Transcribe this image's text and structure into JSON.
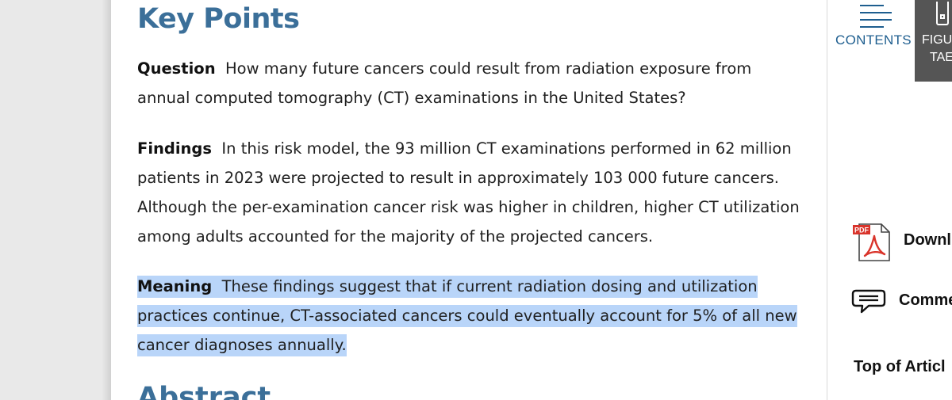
{
  "key_points": {
    "title": "Key Points",
    "question": {
      "label": "Question",
      "text": "How many future cancers could result from radiation exposure from annual computed tomography (CT) examinations in the United States?"
    },
    "findings": {
      "label": "Findings",
      "text": "In this risk model, the 93 million CT examinations performed in 62 million patients in 2023 were projected to result in approximately 103 000 future cancers. Although the per-examination cancer risk was higher in children, higher CT utilization among adults accounted for the majority of the projected cancers."
    },
    "meaning": {
      "label": "Meaning",
      "text": "These findings suggest that if current radiation dosing and utilization practices continue, CT-associated cancers could eventually account for 5% of all new cancer diagnoses annually."
    }
  },
  "next_section_title": "Abstract",
  "sidebar": {
    "contents_label": "CONTENTS",
    "figures_label_line1": "FIGU",
    "figures_label_line2": "TAE",
    "pdf_badge": "PDF",
    "download_label": "Downl",
    "comments_label": "Comme",
    "top_label": "Top of Articl"
  },
  "colors": {
    "heading": "#3b6f99",
    "link": "#1e5e8f",
    "highlight": "#b9d5f9",
    "figures_bg": "#555555",
    "pdf_red": "#d9342b"
  },
  "icons": {
    "contents": "menu-lines-icon",
    "figures": "figure-icon",
    "download": "pdf-icon",
    "comments": "comment-bubble-icon"
  }
}
